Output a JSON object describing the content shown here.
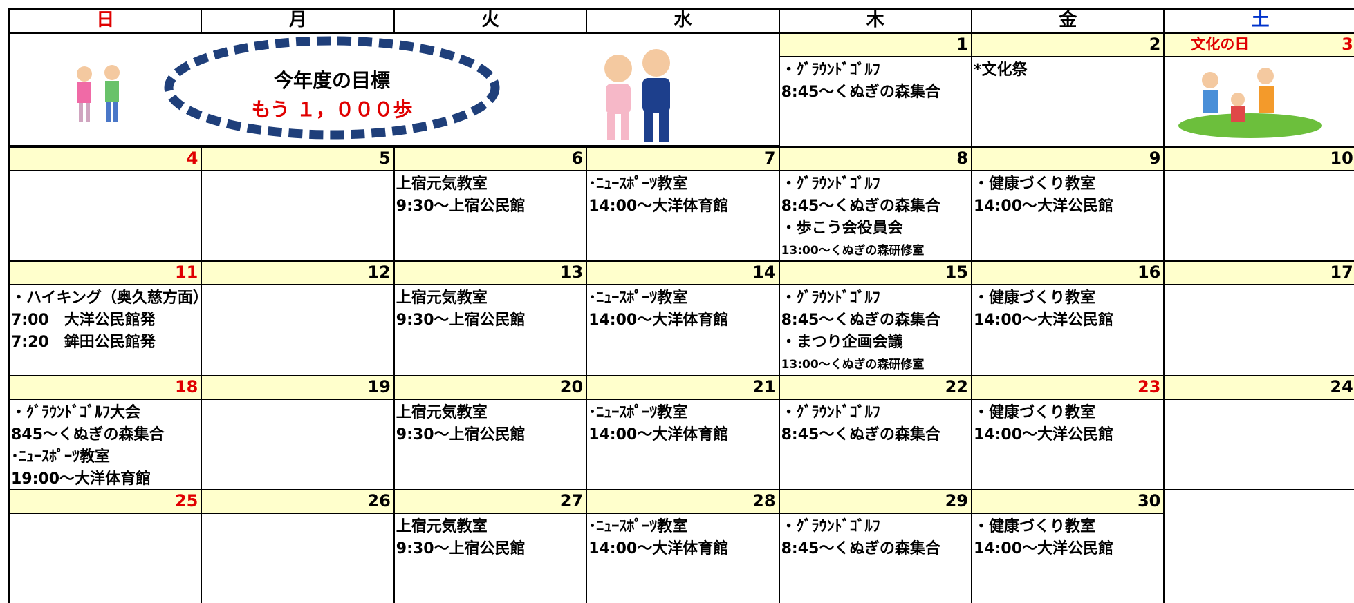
{
  "weekdays": [
    "日",
    "月",
    "火",
    "水",
    "木",
    "金",
    "土"
  ],
  "goal": {
    "title": "今年度の目標",
    "text": "もう １，０００歩"
  },
  "weeks": [
    [
      null,
      null,
      null,
      null,
      {
        "date": 1,
        "events": [
          {
            "text": "・ｸﾞﾗｳﾝﾄﾞｺﾞﾙﾌ"
          },
          {
            "text": "8:45～くぬぎの森集合"
          }
        ]
      },
      {
        "date": 2,
        "events": [
          {
            "text": "*文化祭"
          }
        ]
      },
      {
        "date": 3,
        "label": "文化の日",
        "holiday": true,
        "events": []
      }
    ],
    [
      {
        "date": 4,
        "events": []
      },
      {
        "date": 5,
        "events": []
      },
      {
        "date": 6,
        "events": [
          {
            "text": "上宿元気教室"
          },
          {
            "text": " 9:30～上宿公民館"
          }
        ]
      },
      {
        "date": 7,
        "events": [
          {
            "text": "･ﾆｭｰｽﾎﾟｰﾂ教室"
          },
          {
            "text": "14:00～大洋体育館"
          }
        ]
      },
      {
        "date": 8,
        "events": [
          {
            "text": "・ｸﾞﾗｳﾝﾄﾞｺﾞﾙﾌ"
          },
          {
            "text": "8:45～くぬぎの森集合"
          },
          {
            "text": "・歩こう会役員会"
          },
          {
            "text": "13:00～くぬぎの森研修室",
            "small": true
          }
        ]
      },
      {
        "date": 9,
        "events": [
          {
            "text": "・健康づくり教室"
          },
          {
            "text": "14:00～大洋公民館"
          }
        ]
      },
      {
        "date": 10,
        "events": []
      }
    ],
    [
      {
        "date": 11,
        "events": [
          {
            "text": "・ハイキング（奥久慈方面）"
          },
          {
            "text": "7:00　大洋公民館発"
          },
          {
            "text": "7:20　鉾田公民館発"
          }
        ]
      },
      {
        "date": 12,
        "events": []
      },
      {
        "date": 13,
        "events": [
          {
            "text": "上宿元気教室"
          },
          {
            "text": " 9:30～上宿公民館"
          }
        ]
      },
      {
        "date": 14,
        "events": [
          {
            "text": "･ﾆｭｰｽﾎﾟｰﾂ教室"
          },
          {
            "text": "14:00～大洋体育館"
          }
        ]
      },
      {
        "date": 15,
        "events": [
          {
            "text": "・ｸﾞﾗｳﾝﾄﾞｺﾞﾙﾌ"
          },
          {
            "text": "8:45～くぬぎの森集合"
          },
          {
            "text": "・まつり企画会議"
          },
          {
            "text": "13:00～くぬぎの森研修室",
            "small": true
          }
        ]
      },
      {
        "date": 16,
        "events": [
          {
            "text": "・健康づくり教室"
          },
          {
            "text": "14:00～大洋公民館"
          }
        ]
      },
      {
        "date": 17,
        "events": []
      }
    ],
    [
      {
        "date": 18,
        "events": [
          {
            "text": "・ｸﾞﾗｳﾝﾄﾞｺﾞﾙﾌ大会"
          },
          {
            "text": "845～くぬぎの森集合"
          },
          {
            "text": "･ﾆｭｰｽﾎﾟｰﾂ教室"
          },
          {
            "text": "19:00～大洋体育館"
          }
        ]
      },
      {
        "date": 19,
        "events": []
      },
      {
        "date": 20,
        "events": [
          {
            "text": "上宿元気教室"
          },
          {
            "text": " 9:30～上宿公民館"
          }
        ]
      },
      {
        "date": 21,
        "events": [
          {
            "text": "･ﾆｭｰｽﾎﾟｰﾂ教室"
          },
          {
            "text": "14:00～大洋体育館"
          }
        ]
      },
      {
        "date": 22,
        "events": [
          {
            "text": "・ｸﾞﾗｳﾝﾄﾞｺﾞﾙﾌ"
          },
          {
            "text": "8:45～くぬぎの森集合"
          }
        ]
      },
      {
        "date": 23,
        "holiday": true,
        "events": [
          {
            "text": "・健康づくり教室"
          },
          {
            "text": "14:00～大洋公民館"
          }
        ]
      },
      {
        "date": 24,
        "events": []
      }
    ],
    [
      {
        "date": 25,
        "events": []
      },
      {
        "date": 26,
        "events": []
      },
      {
        "date": 27,
        "events": [
          {
            "text": "上宿元気教室"
          },
          {
            "text": " 9:30～上宿公民館"
          }
        ]
      },
      {
        "date": 28,
        "events": [
          {
            "text": "･ﾆｭｰｽﾎﾟｰﾂ教室"
          },
          {
            "text": "14:00～大洋体育館"
          }
        ]
      },
      {
        "date": 29,
        "events": [
          {
            "text": "・ｸﾞﾗｳﾝﾄﾞｺﾞﾙﾌ"
          },
          {
            "text": "8:45～くぬぎの森集合"
          }
        ]
      },
      {
        "date": 30,
        "events": [
          {
            "text": "・健康づくり教室"
          },
          {
            "text": "14:00～大洋公民館"
          }
        ]
      },
      null
    ]
  ]
}
